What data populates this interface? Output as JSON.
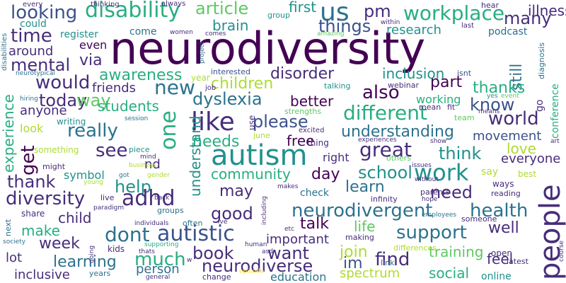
{
  "colors": {
    "background": "#ffffff",
    "palette": {
      "purple": "#440154",
      "indigo": "#472d7b",
      "blue": "#3b528b",
      "steel": "#2c728e",
      "teal": "#21918c",
      "seagreen": "#28ae80",
      "green": "#5ec962",
      "lime": "#addc30",
      "yellow": "#fde725"
    }
  },
  "words": [
    {
      "text": "neurodiversity",
      "color": "purple"
    },
    {
      "text": "people",
      "color": "indigo"
    },
    {
      "text": "autism",
      "color": "teal"
    },
    {
      "text": "disability",
      "color": "seagreen"
    },
    {
      "text": "looking",
      "color": "blue"
    },
    {
      "text": "article",
      "color": "green"
    },
    {
      "text": "first",
      "color": "teal"
    },
    {
      "text": "us",
      "color": "steel"
    },
    {
      "text": "pm",
      "color": "indigo"
    },
    {
      "text": "workplace",
      "color": "seagreen"
    },
    {
      "text": "illness",
      "color": "indigo"
    },
    {
      "text": "many",
      "color": "indigo"
    },
    {
      "text": "time",
      "color": "indigo"
    },
    {
      "text": "brain",
      "color": "teal"
    },
    {
      "text": "things",
      "color": "blue"
    },
    {
      "text": "research",
      "color": "teal"
    },
    {
      "text": "podcast",
      "color": "steel"
    },
    {
      "text": "could",
      "color": "teal"
    },
    {
      "text": "register",
      "color": "teal"
    },
    {
      "text": "come",
      "color": "steel"
    },
    {
      "text": "around",
      "color": "indigo"
    },
    {
      "text": "even",
      "color": "purple"
    },
    {
      "text": "mental",
      "color": "indigo"
    },
    {
      "text": "via",
      "color": "indigo"
    },
    {
      "text": "awareness",
      "color": "seagreen"
    },
    {
      "text": "disorder",
      "color": "indigo"
    },
    {
      "text": "inclusion",
      "color": "teal"
    },
    {
      "text": "still",
      "color": "steel"
    },
    {
      "text": "would",
      "color": "indigo"
    },
    {
      "text": "friends",
      "color": "indigo"
    },
    {
      "text": "new",
      "color": "steel"
    },
    {
      "text": "children",
      "color": "lime"
    },
    {
      "text": "part",
      "color": "purple"
    },
    {
      "text": "thanks",
      "color": "seagreen"
    },
    {
      "text": "today",
      "color": "indigo"
    },
    {
      "text": "dyslexia",
      "color": "steel"
    },
    {
      "text": "also",
      "color": "purple"
    },
    {
      "text": "better",
      "color": "purple"
    },
    {
      "text": "know",
      "color": "blue"
    },
    {
      "text": "anyone",
      "color": "indigo"
    },
    {
      "text": "way",
      "color": "green"
    },
    {
      "text": "students",
      "color": "seagreen"
    },
    {
      "text": "like",
      "color": "indigo"
    },
    {
      "text": "please",
      "color": "blue"
    },
    {
      "text": "different",
      "color": "seagreen"
    },
    {
      "text": "working",
      "color": "seagreen"
    },
    {
      "text": "world",
      "color": "indigo"
    },
    {
      "text": "really",
      "color": "steel"
    },
    {
      "text": "one",
      "color": "seagreen"
    },
    {
      "text": "understanding",
      "color": "steel"
    },
    {
      "text": "movement",
      "color": "blue"
    },
    {
      "text": "experience",
      "color": "seagreen"
    },
    {
      "text": "get",
      "color": "purple"
    },
    {
      "text": "see",
      "color": "indigo"
    },
    {
      "text": "needs",
      "color": "seagreen"
    },
    {
      "text": "free",
      "color": "purple"
    },
    {
      "text": "great",
      "color": "indigo"
    },
    {
      "text": "think",
      "color": "teal"
    },
    {
      "text": "love",
      "color": "lime"
    },
    {
      "text": "everyone",
      "color": "indigo"
    },
    {
      "text": "thank",
      "color": "indigo"
    },
    {
      "text": "help",
      "color": "teal"
    },
    {
      "text": "community",
      "color": "seagreen"
    },
    {
      "text": "day",
      "color": "purple"
    },
    {
      "text": "school",
      "color": "teal"
    },
    {
      "text": "work",
      "color": "teal"
    },
    {
      "text": "learn",
      "color": "steel"
    },
    {
      "text": "need",
      "color": "indigo"
    },
    {
      "text": "diversity",
      "color": "indigo"
    },
    {
      "text": "adhd",
      "color": "indigo"
    },
    {
      "text": "may",
      "color": "indigo"
    },
    {
      "text": "neurodivergent",
      "color": "steel"
    },
    {
      "text": "health",
      "color": "steel"
    },
    {
      "text": "good",
      "color": "indigo"
    },
    {
      "text": "make",
      "color": "seagreen"
    },
    {
      "text": "child",
      "color": "indigo"
    },
    {
      "text": "dont",
      "color": "steel"
    },
    {
      "text": "autistic",
      "color": "blue"
    },
    {
      "text": "talk",
      "color": "purple"
    },
    {
      "text": "life",
      "color": "green"
    },
    {
      "text": "support",
      "color": "steel"
    },
    {
      "text": "well",
      "color": "indigo"
    },
    {
      "text": "week",
      "color": "indigo"
    },
    {
      "text": "much",
      "color": "seagreen"
    },
    {
      "text": "important",
      "color": "indigo"
    },
    {
      "text": "join",
      "color": "lime"
    },
    {
      "text": "book",
      "color": "indigo"
    },
    {
      "text": "want",
      "color": "indigo"
    },
    {
      "text": "learning",
      "color": "steel"
    },
    {
      "text": "person",
      "color": "steel"
    },
    {
      "text": "neurodiverse",
      "color": "indigo"
    },
    {
      "text": "find",
      "color": "indigo"
    },
    {
      "text": "training",
      "color": "green"
    },
    {
      "text": "im",
      "color": "blue"
    },
    {
      "text": "feel",
      "color": "indigo"
    },
    {
      "text": "social",
      "color": "seagreen"
    },
    {
      "text": "inclusive",
      "color": "indigo"
    },
    {
      "text": "education",
      "color": "steel"
    },
    {
      "text": "spectrum",
      "color": "lime"
    },
    {
      "text": "online",
      "color": "teal"
    },
    {
      "text": "lot",
      "color": "indigo"
    },
    {
      "text": "every",
      "color": "indigo"
    },
    {
      "text": "thinking",
      "color": "indigo"
    },
    {
      "text": "always",
      "color": "indigo"
    },
    {
      "text": "group",
      "color": "teal"
    },
    {
      "text": "hear",
      "color": "indigo"
    },
    {
      "text": "within",
      "color": "indigo"
    },
    {
      "text": "last",
      "color": "indigo"
    },
    {
      "text": "women",
      "color": "indigo"
    },
    {
      "text": "comes",
      "color": "indigo"
    },
    {
      "text": "amazing",
      "color": "green"
    },
    {
      "text": "disabilities",
      "color": "steel"
    },
    {
      "text": "project",
      "color": "steel"
    },
    {
      "text": "diagnosis",
      "color": "steel"
    },
    {
      "text": "neurotypical",
      "color": "steel"
    },
    {
      "text": "interested",
      "color": "blue"
    },
    {
      "text": "year",
      "color": "lime"
    },
    {
      "text": "isnt",
      "color": "blue"
    },
    {
      "text": "webinar",
      "color": "indigo"
    },
    {
      "text": "job",
      "color": "indigo"
    },
    {
      "text": "talking",
      "color": "teal"
    },
    {
      "text": "yes",
      "color": "teal"
    },
    {
      "text": "event",
      "color": "green"
    },
    {
      "text": "mean",
      "color": "indigo"
    },
    {
      "text": "fit",
      "color": "indigo"
    },
    {
      "text": "conference",
      "color": "seagreen"
    },
    {
      "text": "hiring",
      "color": "steel"
    },
    {
      "text": "session",
      "color": "steel"
    },
    {
      "text": "strengths",
      "color": "green"
    },
    {
      "text": "team",
      "color": "green"
    },
    {
      "text": "means",
      "color": "indigo"
    },
    {
      "text": "writing",
      "color": "teal"
    },
    {
      "text": "use",
      "color": "indigo"
    },
    {
      "text": "excited",
      "color": "indigo"
    },
    {
      "text": "look",
      "color": "lime"
    },
    {
      "text": "june",
      "color": "lime"
    },
    {
      "text": "thing",
      "color": "indigo"
    },
    {
      "text": "experiences",
      "color": "indigo"
    },
    {
      "text": "show",
      "color": "indigo"
    },
    {
      "text": "art",
      "color": "indigo"
    },
    {
      "text": "go",
      "color": "indigo"
    },
    {
      "text": "something",
      "color": "lime"
    },
    {
      "text": "piece",
      "color": "teal"
    },
    {
      "text": "mind",
      "color": "indigo"
    },
    {
      "text": "nd",
      "color": "indigo"
    },
    {
      "text": "right",
      "color": "indigo"
    },
    {
      "text": "others",
      "color": "green"
    },
    {
      "text": "issues",
      "color": "indigo"
    },
    {
      "text": "understand",
      "color": "teal"
    },
    {
      "text": "might",
      "color": "indigo"
    },
    {
      "text": "business",
      "color": "lime"
    },
    {
      "text": "symbol",
      "color": "teal"
    },
    {
      "text": "gender",
      "color": "lime"
    },
    {
      "text": "young",
      "color": "lime"
    },
    {
      "text": "got",
      "color": "steel"
    },
    {
      "text": "including",
      "color": "indigo"
    },
    {
      "text": "say",
      "color": "lime"
    },
    {
      "text": "best",
      "color": "lime"
    },
    {
      "text": "without",
      "color": "indigo"
    },
    {
      "text": "ways",
      "color": "indigo"
    },
    {
      "text": "live",
      "color": "indigo"
    },
    {
      "text": "back",
      "color": "indigo"
    },
    {
      "text": "makes",
      "color": "indigo"
    },
    {
      "text": "check",
      "color": "steel"
    },
    {
      "text": "parents",
      "color": "indigo"
    },
    {
      "text": "reading",
      "color": "indigo"
    },
    {
      "text": "infinity",
      "color": "indigo"
    },
    {
      "text": "hope",
      "color": "indigo"
    },
    {
      "text": "paradigm",
      "color": "indigo"
    },
    {
      "text": "groups",
      "color": "steel"
    },
    {
      "text": "often",
      "color": "steel"
    },
    {
      "text": "ive",
      "color": "indigo"
    },
    {
      "text": "share",
      "color": "indigo"
    },
    {
      "text": "next",
      "color": "steel"
    },
    {
      "text": "individuals",
      "color": "indigo"
    },
    {
      "text": "employees",
      "color": "steel"
    },
    {
      "text": "someone",
      "color": "indigo"
    },
    {
      "text": "etc",
      "color": "indigo"
    },
    {
      "text": "making",
      "color": "indigo"
    },
    {
      "text": "open",
      "color": "indigo"
    },
    {
      "text": "society",
      "color": "steel"
    },
    {
      "text": "supporting",
      "color": "seagreen"
    },
    {
      "text": "human",
      "color": "indigo"
    },
    {
      "text": "kids",
      "color": "indigo"
    },
    {
      "text": "going",
      "color": "indigo"
    },
    {
      "text": "thats",
      "color": "indigo"
    },
    {
      "text": "differences",
      "color": "lime"
    },
    {
      "text": "course",
      "color": "indigo"
    },
    {
      "text": "asd",
      "color": "indigo"
    },
    {
      "text": "link",
      "color": "steel"
    },
    {
      "text": "latest",
      "color": "indigo"
    },
    {
      "text": "years",
      "color": "steel"
    },
    {
      "text": "general",
      "color": "indigo"
    },
    {
      "text": "change",
      "color": "indigo"
    },
    {
      "text": "episode",
      "color": "yellow"
    },
    {
      "text": "w",
      "color": "indigo"
    }
  ]
}
